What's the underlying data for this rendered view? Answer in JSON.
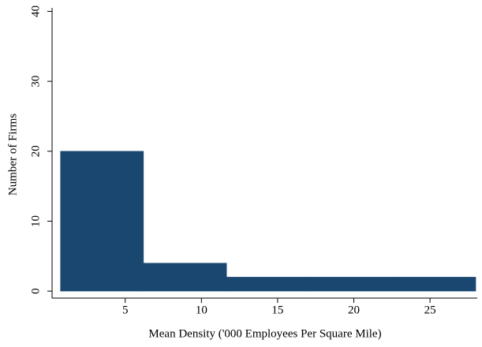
{
  "chart_data": {
    "type": "histogram",
    "x_label": "Mean Density ('000 Employees Per Square Mile)",
    "y_label": "Number of Firms",
    "bins": [
      0.75,
      6.2,
      11.65,
      17.1,
      22.55,
      28.0
    ],
    "values": [
      20,
      4,
      2,
      2,
      2
    ],
    "color": "#1a476f",
    "xlim": [
      0.2,
      28.1
    ],
    "ylim": [
      -1,
      40.5
    ],
    "xticks": [
      5,
      10,
      15,
      20,
      25
    ],
    "yticks": [
      0,
      10,
      20,
      30,
      40
    ]
  }
}
